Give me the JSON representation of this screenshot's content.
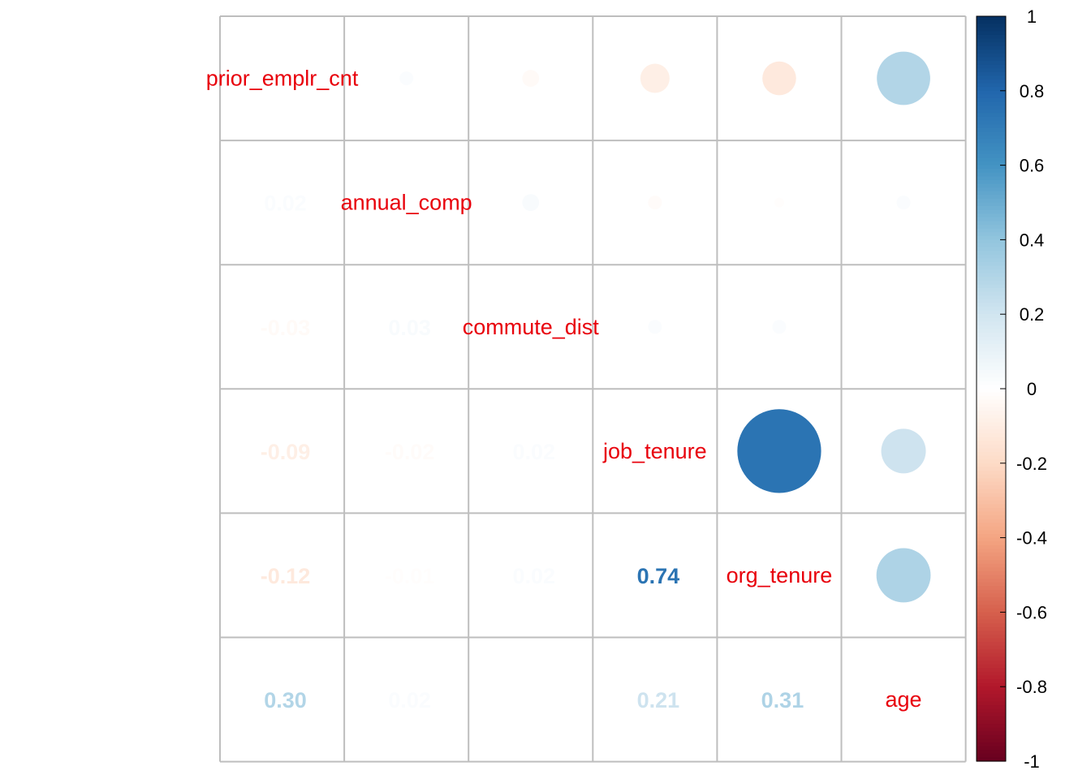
{
  "chart_data": {
    "type": "heatmap",
    "variables": [
      "prior_emplr_cnt",
      "annual_comp",
      "commute_dist",
      "job_tenure",
      "org_tenure",
      "age"
    ],
    "correlation_matrix": [
      [
        1.0,
        0.02,
        -0.03,
        -0.09,
        -0.12,
        0.3
      ],
      [
        0.02,
        1.0,
        0.03,
        -0.02,
        -0.01,
        0.02
      ],
      [
        -0.03,
        0.03,
        1.0,
        0.02,
        0.02,
        0.0
      ],
      [
        -0.09,
        -0.02,
        0.02,
        1.0,
        0.74,
        0.21
      ],
      [
        -0.12,
        -0.01,
        0.02,
        0.74,
        1.0,
        0.31
      ],
      [
        0.3,
        0.02,
        0.0,
        0.21,
        0.31,
        1.0
      ]
    ],
    "lower_triangle": "number",
    "upper_triangle": "circle",
    "diagonal": "label",
    "value_range": [
      -1,
      1
    ],
    "colorbar": {
      "ticks": [
        "1",
        "0.8",
        "0.6",
        "0.4",
        "0.2",
        "0",
        "-0.2",
        "-0.4",
        "-0.6",
        "-0.8",
        "-1"
      ],
      "placement": "right"
    },
    "grid": true,
    "label_color": "#e8000b",
    "palette": [
      "#67001f",
      "#b2182b",
      "#d6604d",
      "#f4a582",
      "#fddbc7",
      "#ffffff",
      "#d1e5f0",
      "#92c5de",
      "#4393c3",
      "#2166ac",
      "#053061"
    ]
  }
}
